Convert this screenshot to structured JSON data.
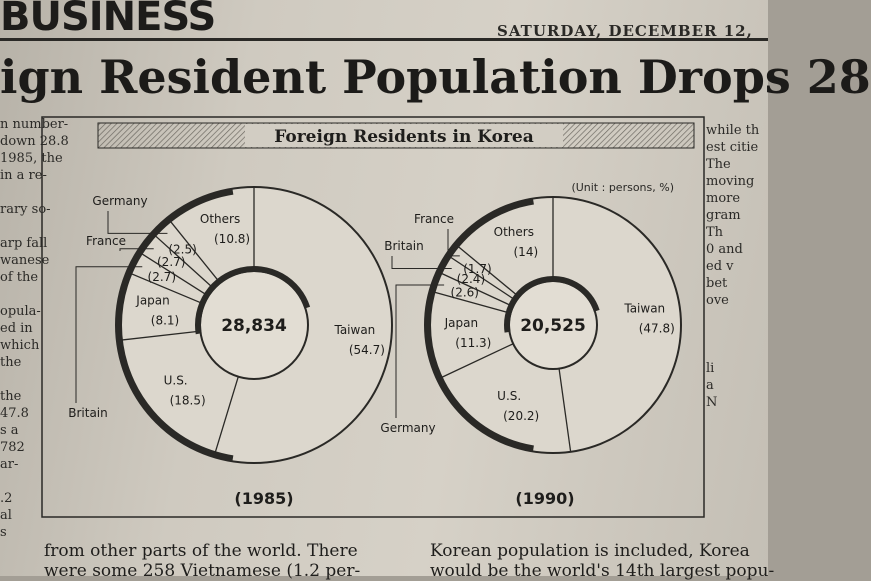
{
  "masthead": "BUSINESS",
  "dateline": "SATURDAY, DECEMBER 12,",
  "headline": "ign Resident Population Drops 28",
  "left_column": [
    "n number-",
    "down 28.8",
    "1985, the",
    "in a re-",
    "",
    "rary so-",
    "",
    "arp fall",
    "wanese",
    "of the",
    "",
    "opula-",
    "ed in",
    "which",
    "the",
    "",
    "the",
    "47.8",
    "s a",
    "782",
    "ar-",
    "",
    ".2",
    "al",
    "s"
  ],
  "right_column": [
    "while th",
    "est citie",
    "The",
    "moving",
    "more",
    "gram",
    "Th",
    "0 and",
    "ed v",
    "bet",
    "ove",
    "",
    "",
    "",
    "li",
    "a",
    "N"
  ],
  "bottom_left": [
    "from other parts of the world. There",
    "were some 258 Vietnamese (1.2 per-"
  ],
  "bottom_right": [
    "Korean population is included, Korea",
    "would be the world's 14th largest popu-"
  ],
  "chart_data": {
    "type": "pie",
    "title": "Foreign Residents in Korea",
    "unit_note": "(Unit : persons, %)",
    "charts": [
      {
        "label": "(1985)",
        "total": "28,834",
        "slices": [
          {
            "name": "Taiwan",
            "value": 54.7,
            "label": "(54.7)"
          },
          {
            "name": "U.S.",
            "value": 18.5,
            "label": "(18.5)"
          },
          {
            "name": "Japan",
            "value": 8.1,
            "label": "(8.1)"
          },
          {
            "name": "Britain",
            "value": 2.7,
            "label": "(2.7)"
          },
          {
            "name": "France",
            "value": 2.7,
            "label": "(2.7)"
          },
          {
            "name": "Germany",
            "value": 2.5,
            "label": "(2.5)"
          },
          {
            "name": "Others",
            "value": 10.8,
            "label": "(10.8)"
          }
        ]
      },
      {
        "label": "(1990)",
        "total": "20,525",
        "slices": [
          {
            "name": "Taiwan",
            "value": 47.8,
            "label": "(47.8)"
          },
          {
            "name": "U.S.",
            "value": 20.2,
            "label": "(20.2)"
          },
          {
            "name": "Japan",
            "value": 11.3,
            "label": "(11.3)"
          },
          {
            "name": "Germany",
            "value": 2.6,
            "label": "(2.6)"
          },
          {
            "name": "Britain",
            "value": 2.4,
            "label": "(2.4)"
          },
          {
            "name": "France",
            "value": 1.7,
            "label": "(1.7)"
          },
          {
            "name": "Others",
            "value": 14,
            "label": "(14)"
          }
        ]
      }
    ]
  }
}
